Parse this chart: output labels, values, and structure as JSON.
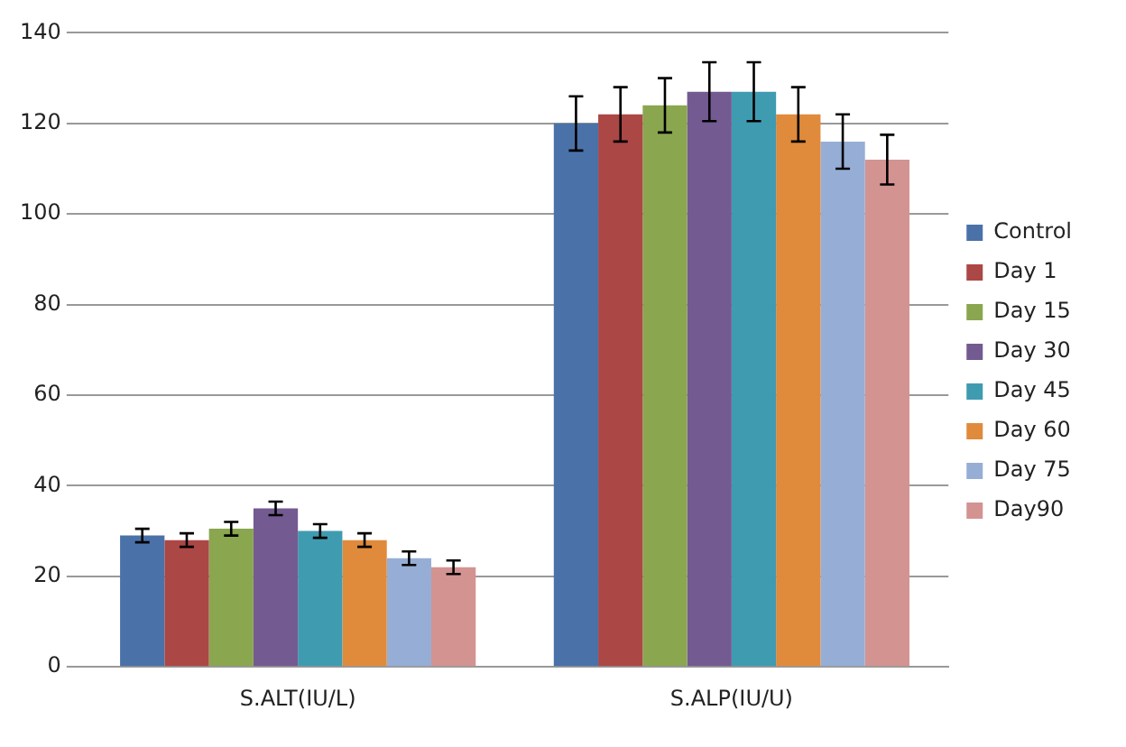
{
  "chart_data": {
    "type": "bar",
    "categories": [
      "S.ALT(IU/L)",
      "S.ALP(IU/U)"
    ],
    "series": [
      {
        "name": "Control",
        "color": "#4a72a8",
        "values": [
          29,
          120
        ],
        "errors": [
          1.5,
          6
        ]
      },
      {
        "name": "Day 1",
        "color": "#ab4745",
        "values": [
          28,
          122
        ],
        "errors": [
          1.5,
          6
        ]
      },
      {
        "name": "Day 15",
        "color": "#8aa64f",
        "values": [
          30.5,
          124
        ],
        "errors": [
          1.5,
          6
        ]
      },
      {
        "name": "Day 30",
        "color": "#735a91",
        "values": [
          35,
          127
        ],
        "errors": [
          1.5,
          6.5
        ]
      },
      {
        "name": "Day 45",
        "color": "#3f9bb0",
        "values": [
          30,
          127
        ],
        "errors": [
          1.5,
          6.5
        ]
      },
      {
        "name": "Day 60",
        "color": "#e08a3c",
        "values": [
          28,
          122
        ],
        "errors": [
          1.5,
          6
        ]
      },
      {
        "name": "Day 75",
        "color": "#96aed5",
        "values": [
          24,
          116
        ],
        "errors": [
          1.5,
          6
        ]
      },
      {
        "name": "Day90",
        "color": "#d39391",
        "values": [
          22,
          112
        ],
        "errors": [
          1.5,
          5.5
        ]
      }
    ],
    "ylim": [
      0,
      140
    ],
    "yticks": [
      0,
      20,
      40,
      60,
      80,
      100,
      120,
      140
    ],
    "grid": "y",
    "legend": "right"
  }
}
